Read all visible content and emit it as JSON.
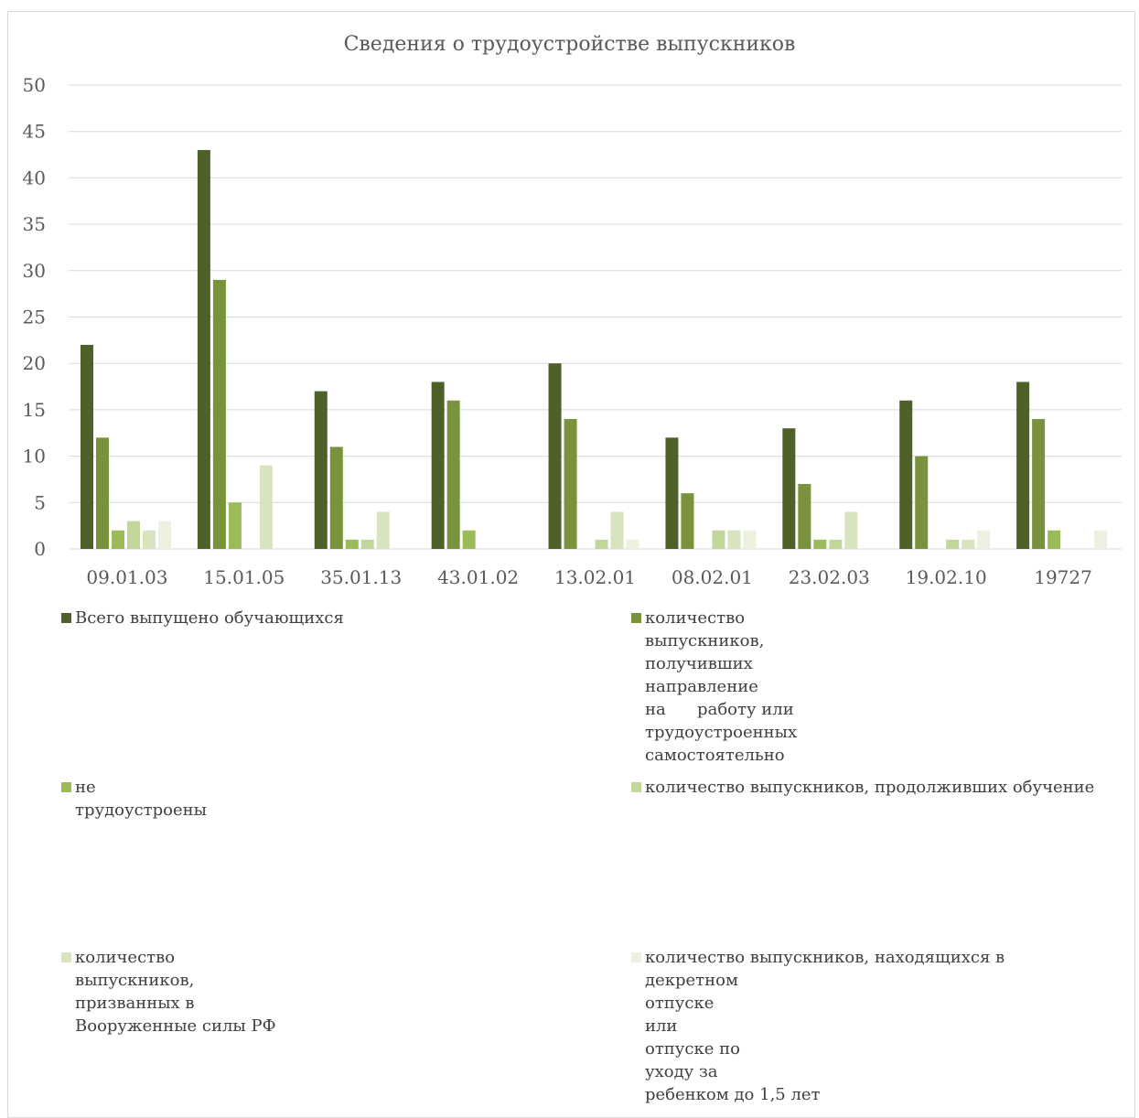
{
  "chart_data": {
    "type": "bar",
    "title": "Сведения о трудоустройстве выпускников",
    "categories": [
      "09.01.03",
      "15.01.05",
      "35.01.13",
      "43.01.02",
      "13.02.01",
      "08.02.01",
      "23.02.03",
      "19.02.10",
      "19727"
    ],
    "ylim": [
      0,
      50
    ],
    "yticks": [
      0,
      5,
      10,
      15,
      20,
      25,
      30,
      35,
      40,
      45,
      50
    ],
    "grid": true,
    "legend_position": "bottom",
    "series": [
      {
        "name": "Всего выпущено обучающихся",
        "color": "#4e6128",
        "values": [
          22,
          43,
          17,
          18,
          20,
          12,
          13,
          16,
          18
        ]
      },
      {
        "name": "количество выпускников, получивших направление на работу или трудоустроенных самостоятельно",
        "color": "#77933c",
        "values": [
          12,
          29,
          11,
          16,
          14,
          6,
          7,
          10,
          14
        ]
      },
      {
        "name": "не трудоустроены",
        "color": "#9bbb59",
        "values": [
          2,
          5,
          1,
          2,
          0,
          0,
          1,
          0,
          2
        ]
      },
      {
        "name": "количество выпускников, продолживших обучение",
        "color": "#c3d69b",
        "values": [
          3,
          0,
          1,
          0,
          1,
          2,
          1,
          1,
          0
        ]
      },
      {
        "name": "количество выпускников, призванных в Вооруженные силы РФ",
        "color": "#d7e4bd",
        "values": [
          2,
          9,
          4,
          0,
          4,
          2,
          4,
          1,
          0
        ]
      },
      {
        "name": "количество выпускников, находящихся в декретном отпуске или отпуске по уходу за ребенком до 1,5 лет",
        "color": "#ebf1de",
        "values": [
          3,
          0,
          0,
          0,
          1,
          2,
          0,
          2,
          2
        ]
      }
    ]
  },
  "legend_lines": [
    [
      "Всего выпущено обучающихся"
    ],
    [
      "количество",
      "выпускников,",
      "получивших",
      "направление",
      "на      работу или",
      "трудоустроенных",
      "самостоятельно"
    ],
    [
      "не",
      "трудоустроены"
    ],
    [
      "количество выпускников, продолживших обучение"
    ],
    [
      "количество",
      "выпускников,",
      "призванных в",
      "Вооруженные силы РФ"
    ],
    [
      "количество выпускников, находящихся в",
      "декретном",
      "отпуске",
      "или",
      "отпуске по",
      "уходу за",
      "ребенком до 1,5 лет"
    ]
  ]
}
